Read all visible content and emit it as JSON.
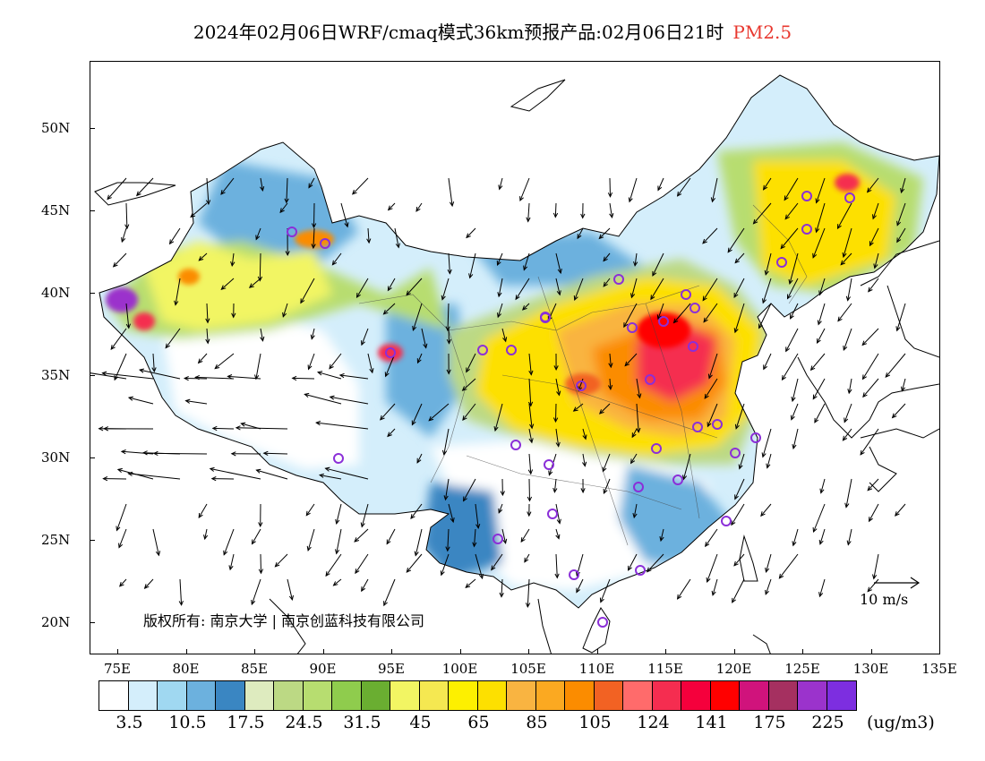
{
  "title": {
    "main": "2024年02月06日WRF/cmaq模式36km预报产品:02月06日21时",
    "pollutant": "PM2.5",
    "pollutant_color": "#e8382f"
  },
  "axes": {
    "lat_labels": [
      "50N",
      "45N",
      "40N",
      "35N",
      "30N",
      "25N",
      "20N"
    ],
    "lon_labels": [
      "75E",
      "80E",
      "85E",
      "90E",
      "95E",
      "100E",
      "105E",
      "110E",
      "115E",
      "120E",
      "125E",
      "130E",
      "135E"
    ]
  },
  "copyright": "版权所有: 南京大学 | 南京创蓝科技有限公司",
  "wind_reference": {
    "label": "10 m/s"
  },
  "legend": {
    "colors": [
      "#ffffff",
      "#d4eefb",
      "#a0d8f1",
      "#6cb1de",
      "#3a86c2",
      "#deebbf",
      "#bcd984",
      "#b7dd70",
      "#8fcc4d",
      "#6aae31",
      "#f2f563",
      "#f5e851",
      "#fdf000",
      "#fde000",
      "#f9b441",
      "#fba921",
      "#fb8c00",
      "#f26223",
      "#ff6b6b",
      "#f52d50",
      "#f5003c",
      "#ff0000",
      "#d0137c",
      "#a53060",
      "#9b33cc",
      "#7d2ee0"
    ],
    "labels": [
      "3.5",
      "10.5",
      "17.5",
      "24.5",
      "31.5",
      "45",
      "65",
      "85",
      "105",
      "124",
      "141",
      "175",
      "225"
    ],
    "unit": "(ug/m3)"
  },
  "map_layers": {
    "bands": [
      {
        "band": "white",
        "color": "#ffffff"
      },
      {
        "band": "light-blue",
        "color": "#a0d8f1"
      },
      {
        "band": "blue",
        "color": "#6cb1de"
      },
      {
        "band": "green",
        "color": "#b7dd70"
      },
      {
        "band": "yellow",
        "color": "#fde000"
      },
      {
        "band": "orange",
        "color": "#fb8c00"
      },
      {
        "band": "red",
        "color": "#f52d50"
      },
      {
        "band": "purple",
        "color": "#9b33cc"
      }
    ],
    "city_marker_color": "#8b2fd8",
    "wind_vector_color": "#000000"
  }
}
